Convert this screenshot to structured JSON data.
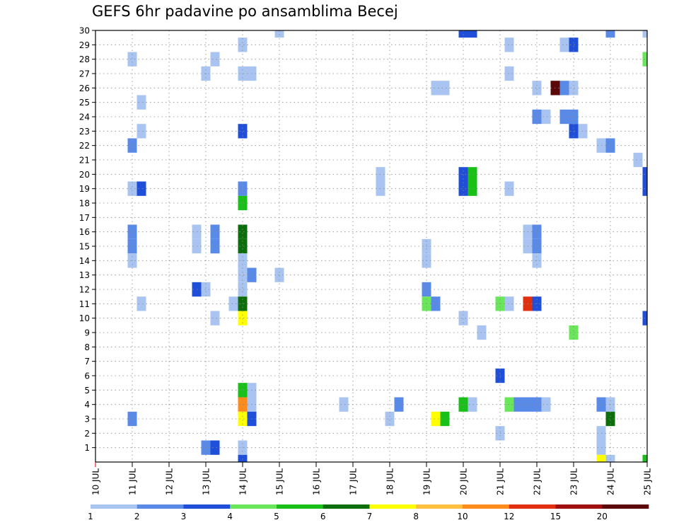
{
  "chart_data": {
    "type": "heatmap",
    "title": "GEFS 6hr padavine po ansamblima Becej",
    "x_tick_labels": [
      "10 JUL",
      "11 JUL",
      "12 JUL",
      "13 JUL",
      "14 JUL",
      "15 JUL",
      "16 JUL",
      "17 JUL",
      "18 JUL",
      "19 JUL",
      "20 JUL",
      "21 JUL",
      "22 JUL",
      "23 JUL",
      "24 JUL",
      "25 JUL"
    ],
    "xlim_days": [
      10,
      25
    ],
    "time_step_hours": 6,
    "y_tick_labels": [
      "1",
      "2",
      "3",
      "4",
      "5",
      "6",
      "7",
      "8",
      "9",
      "10",
      "11",
      "12",
      "13",
      "14",
      "15",
      "16",
      "17",
      "18",
      "19",
      "20",
      "21",
      "22",
      "23",
      "24",
      "25",
      "26",
      "27",
      "28",
      "29",
      "30"
    ],
    "ylim": [
      0,
      30
    ],
    "grid": true,
    "colorbar": {
      "placement": "bottom",
      "bounds": [
        1,
        2,
        3,
        4,
        5,
        6,
        7,
        8,
        10,
        12,
        15,
        20
      ],
      "tick_labels": [
        "1",
        "2",
        "3",
        "4",
        "5",
        "6",
        "7",
        "8",
        "10",
        "12",
        "15",
        "20"
      ],
      "colors": [
        "#aac4f2",
        "#5a8ae8",
        "#1f4fd8",
        "#6ae65a",
        "#18c018",
        "#0b6e0b",
        "#ffff00",
        "#ffc040",
        "#ff8c1a",
        "#e03010",
        "#a01010",
        "#5a0808"
      ]
    },
    "levels_note": "",
    "cells": [
      [
        30,
        20.0,
        3
      ],
      [
        30,
        20.25,
        3
      ],
      [
        30,
        15.0,
        1
      ],
      [
        30,
        24.0,
        2
      ],
      [
        30,
        25.0,
        1
      ],
      [
        29,
        14.0,
        1
      ],
      [
        29,
        21.25,
        1
      ],
      [
        29,
        22.75,
        1
      ],
      [
        29,
        23.0,
        3
      ],
      [
        28,
        11.0,
        1
      ],
      [
        28,
        13.25,
        1
      ],
      [
        28,
        25.0,
        4
      ],
      [
        27,
        13.0,
        1
      ],
      [
        27,
        14.0,
        1
      ],
      [
        27,
        14.25,
        1
      ],
      [
        27,
        21.25,
        1
      ],
      [
        26,
        19.25,
        1
      ],
      [
        26,
        19.5,
        1
      ],
      [
        26,
        22.0,
        1
      ],
      [
        26,
        22.5,
        12
      ],
      [
        26,
        22.75,
        2
      ],
      [
        26,
        23.0,
        1
      ],
      [
        25,
        11.25,
        1
      ],
      [
        24,
        22.0,
        2
      ],
      [
        24,
        22.25,
        1
      ],
      [
        24,
        22.75,
        2
      ],
      [
        24,
        23.0,
        2
      ],
      [
        23,
        11.25,
        1
      ],
      [
        23,
        14.0,
        3
      ],
      [
        23,
        23.0,
        3
      ],
      [
        23,
        23.25,
        1
      ],
      [
        22,
        11.0,
        2
      ],
      [
        22,
        23.75,
        1
      ],
      [
        22,
        24.0,
        2
      ],
      [
        21,
        24.75,
        1
      ],
      [
        20,
        17.75,
        1
      ],
      [
        20,
        20.0,
        3
      ],
      [
        20,
        20.25,
        5
      ],
      [
        20,
        25.0,
        3
      ],
      [
        19,
        11.0,
        1
      ],
      [
        19,
        11.25,
        3
      ],
      [
        19,
        14.0,
        2
      ],
      [
        19,
        17.75,
        1
      ],
      [
        19,
        20.0,
        3
      ],
      [
        19,
        20.25,
        5
      ],
      [
        19,
        21.25,
        1
      ],
      [
        19,
        25.0,
        3
      ],
      [
        18,
        14.0,
        5
      ],
      [
        16,
        11.0,
        2
      ],
      [
        16,
        12.75,
        1
      ],
      [
        16,
        13.25,
        2
      ],
      [
        16,
        14.0,
        6
      ],
      [
        16,
        21.75,
        1
      ],
      [
        16,
        22.0,
        2
      ],
      [
        15,
        11.0,
        2
      ],
      [
        15,
        12.75,
        1
      ],
      [
        15,
        13.25,
        2
      ],
      [
        15,
        14.0,
        6
      ],
      [
        15,
        19.0,
        1
      ],
      [
        15,
        21.75,
        1
      ],
      [
        15,
        22.0,
        2
      ],
      [
        14,
        11.0,
        1
      ],
      [
        14,
        14.0,
        1
      ],
      [
        14,
        19.0,
        1
      ],
      [
        14,
        22.0,
        1
      ],
      [
        13,
        14.0,
        1
      ],
      [
        13,
        14.25,
        2
      ],
      [
        13,
        15.0,
        1
      ],
      [
        12,
        12.75,
        3
      ],
      [
        12,
        13.0,
        1
      ],
      [
        12,
        14.0,
        1
      ],
      [
        12,
        19.0,
        2
      ],
      [
        11,
        11.25,
        1
      ],
      [
        11,
        13.75,
        1
      ],
      [
        11,
        14.0,
        6
      ],
      [
        11,
        19.0,
        4
      ],
      [
        11,
        19.25,
        2
      ],
      [
        11,
        21.0,
        4
      ],
      [
        11,
        21.25,
        1
      ],
      [
        11,
        21.75,
        10
      ],
      [
        11,
        22.0,
        3
      ],
      [
        10,
        13.25,
        1
      ],
      [
        10,
        14.0,
        7
      ],
      [
        10,
        20.0,
        1
      ],
      [
        10,
        25.0,
        3
      ],
      [
        9,
        20.5,
        1
      ],
      [
        9,
        23.0,
        4
      ],
      [
        6,
        21.0,
        3
      ],
      [
        5,
        14.0,
        5
      ],
      [
        5,
        14.25,
        1
      ],
      [
        4,
        14.0,
        9
      ],
      [
        4,
        14.25,
        1
      ],
      [
        4,
        16.75,
        1
      ],
      [
        4,
        18.25,
        2
      ],
      [
        4,
        20.0,
        5
      ],
      [
        4,
        20.25,
        1
      ],
      [
        4,
        21.25,
        4
      ],
      [
        4,
        21.5,
        2
      ],
      [
        4,
        21.75,
        2
      ],
      [
        4,
        22.0,
        2
      ],
      [
        4,
        22.25,
        1
      ],
      [
        4,
        23.75,
        2
      ],
      [
        4,
        24.0,
        1
      ],
      [
        3,
        11.0,
        2
      ],
      [
        3,
        14.0,
        7
      ],
      [
        3,
        14.25,
        3
      ],
      [
        3,
        18.0,
        1
      ],
      [
        3,
        19.25,
        7
      ],
      [
        3,
        19.5,
        5
      ],
      [
        3,
        24.0,
        6
      ],
      [
        2,
        21.0,
        1
      ],
      [
        2,
        23.75,
        1
      ],
      [
        1,
        13.0,
        2
      ],
      [
        1,
        13.25,
        3
      ],
      [
        1,
        14.0,
        1
      ],
      [
        1,
        23.75,
        1
      ],
      [
        0,
        14.0,
        3
      ],
      [
        0,
        23.75,
        7
      ],
      [
        0,
        24.0,
        1
      ],
      [
        0,
        25.0,
        5
      ]
    ]
  }
}
